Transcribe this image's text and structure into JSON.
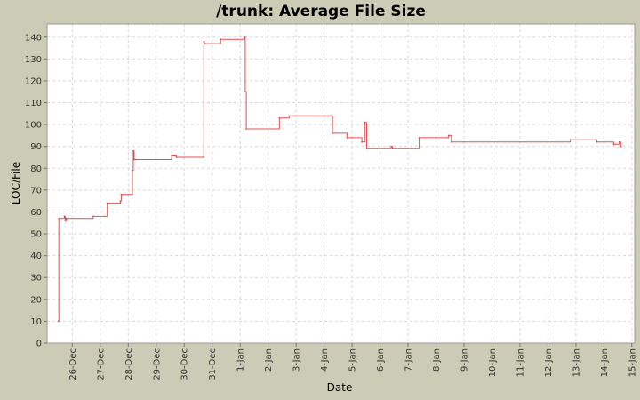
{
  "chart_data": {
    "type": "line",
    "title": "/trunk: Average File Size",
    "xlabel": "Date",
    "ylabel": "LOC/File",
    "ylim": [
      0,
      146
    ],
    "y_ticks": [
      0,
      10,
      20,
      30,
      40,
      50,
      60,
      70,
      80,
      90,
      100,
      110,
      120,
      130,
      140
    ],
    "x_ticks": [
      "26-Dec",
      "27-Dec",
      "28-Dec",
      "29-Dec",
      "30-Dec",
      "31-Dec",
      "1-Jan",
      "2-Jan",
      "3-Jan",
      "4-Jan",
      "5-Jan",
      "6-Jan",
      "7-Jan",
      "8-Jan",
      "9-Jan",
      "10-Jan",
      "11-Jan",
      "12-Jan",
      "13-Jan",
      "14-Jan",
      "15-Jan"
    ],
    "x_tick_values": [
      1,
      2,
      3,
      4,
      5,
      6,
      7,
      8,
      9,
      10,
      11,
      12,
      13,
      14,
      15,
      16,
      17,
      18,
      19,
      20,
      21
    ],
    "x_units": "days from 25-Dec",
    "xlim": [
      0.1,
      21.1
    ],
    "grid": true,
    "line_color": "#e05050",
    "series": [
      {
        "name": "",
        "step": true,
        "x": [
          0.5,
          0.52,
          0.72,
          0.75,
          0.78,
          0.8,
          1.75,
          2.25,
          2.72,
          2.75,
          3.15,
          3.18,
          3.21,
          3.25,
          4.55,
          4.72,
          5.7,
          5.72,
          5.75,
          6.3,
          7.15,
          7.18,
          7.22,
          8.4,
          8.75,
          10.3,
          10.82,
          11.35,
          11.45,
          11.52,
          12.4,
          12.45,
          13.4,
          14.45,
          14.55,
          18.8,
          19.75,
          20.35,
          20.55,
          20.6
        ],
        "y": [
          10,
          57,
          58,
          56,
          57,
          57,
          58,
          64,
          65,
          68,
          79,
          88,
          84,
          84,
          86,
          85,
          138,
          137,
          137,
          139,
          140,
          115,
          98,
          103,
          104,
          96,
          94,
          92,
          101,
          89,
          90,
          89,
          94,
          95,
          92,
          93,
          92,
          91,
          92,
          90
        ]
      }
    ],
    "x_end": 20.65
  }
}
